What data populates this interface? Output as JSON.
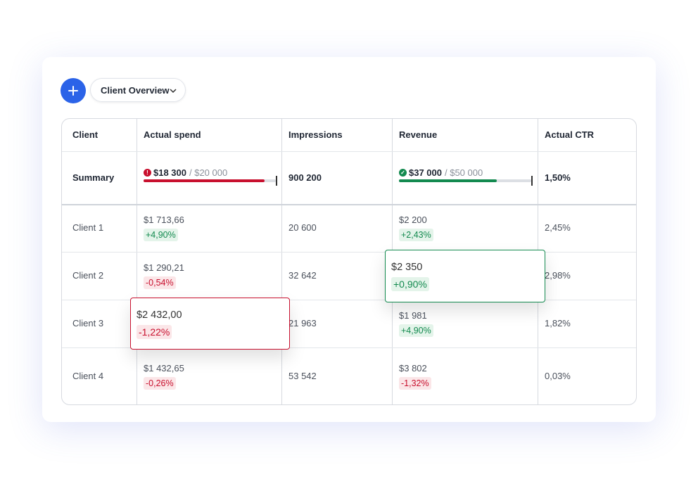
{
  "toolbar": {
    "view": "Client Overview"
  },
  "table": {
    "headers": [
      "Client",
      "Actual spend",
      "Impressions",
      "Revenue",
      "Actual CTR"
    ],
    "summary": {
      "label": "Summary",
      "spend": {
        "value": "$18 300",
        "budget": "/ $20 000"
      },
      "impressions": "900 200",
      "revenue": {
        "value": "$37 000",
        "budget": "/ $50 000"
      },
      "ctr": "1,50%"
    },
    "rows": [
      {
        "client": "Client 1",
        "spend": "$1 713,66",
        "spend_change": "+4,90%",
        "impressions": "20 600",
        "revenue": "$2 200",
        "revenue_change": "+2,43%",
        "ctr": "2,45%"
      },
      {
        "client": "Client 2",
        "spend": "$1 290,21",
        "spend_change": "-0,54%",
        "impressions": "32 642",
        "revenue": "$2 350",
        "revenue_change": "+0,90%",
        "ctr": "2,98%"
      },
      {
        "client": "Client 3",
        "spend": "$2 432,00",
        "spend_change": "-1,22%",
        "impressions": "21 963",
        "revenue": "$1 981",
        "revenue_change": "+4,90%",
        "ctr": "1,82%"
      },
      {
        "client": "Client 4",
        "spend": "$1 432,65",
        "spend_change": "-0,26%",
        "impressions": "53 542",
        "revenue": "$3 802",
        "revenue_change": "-1,32%",
        "ctr": "0,03%"
      }
    ]
  }
}
